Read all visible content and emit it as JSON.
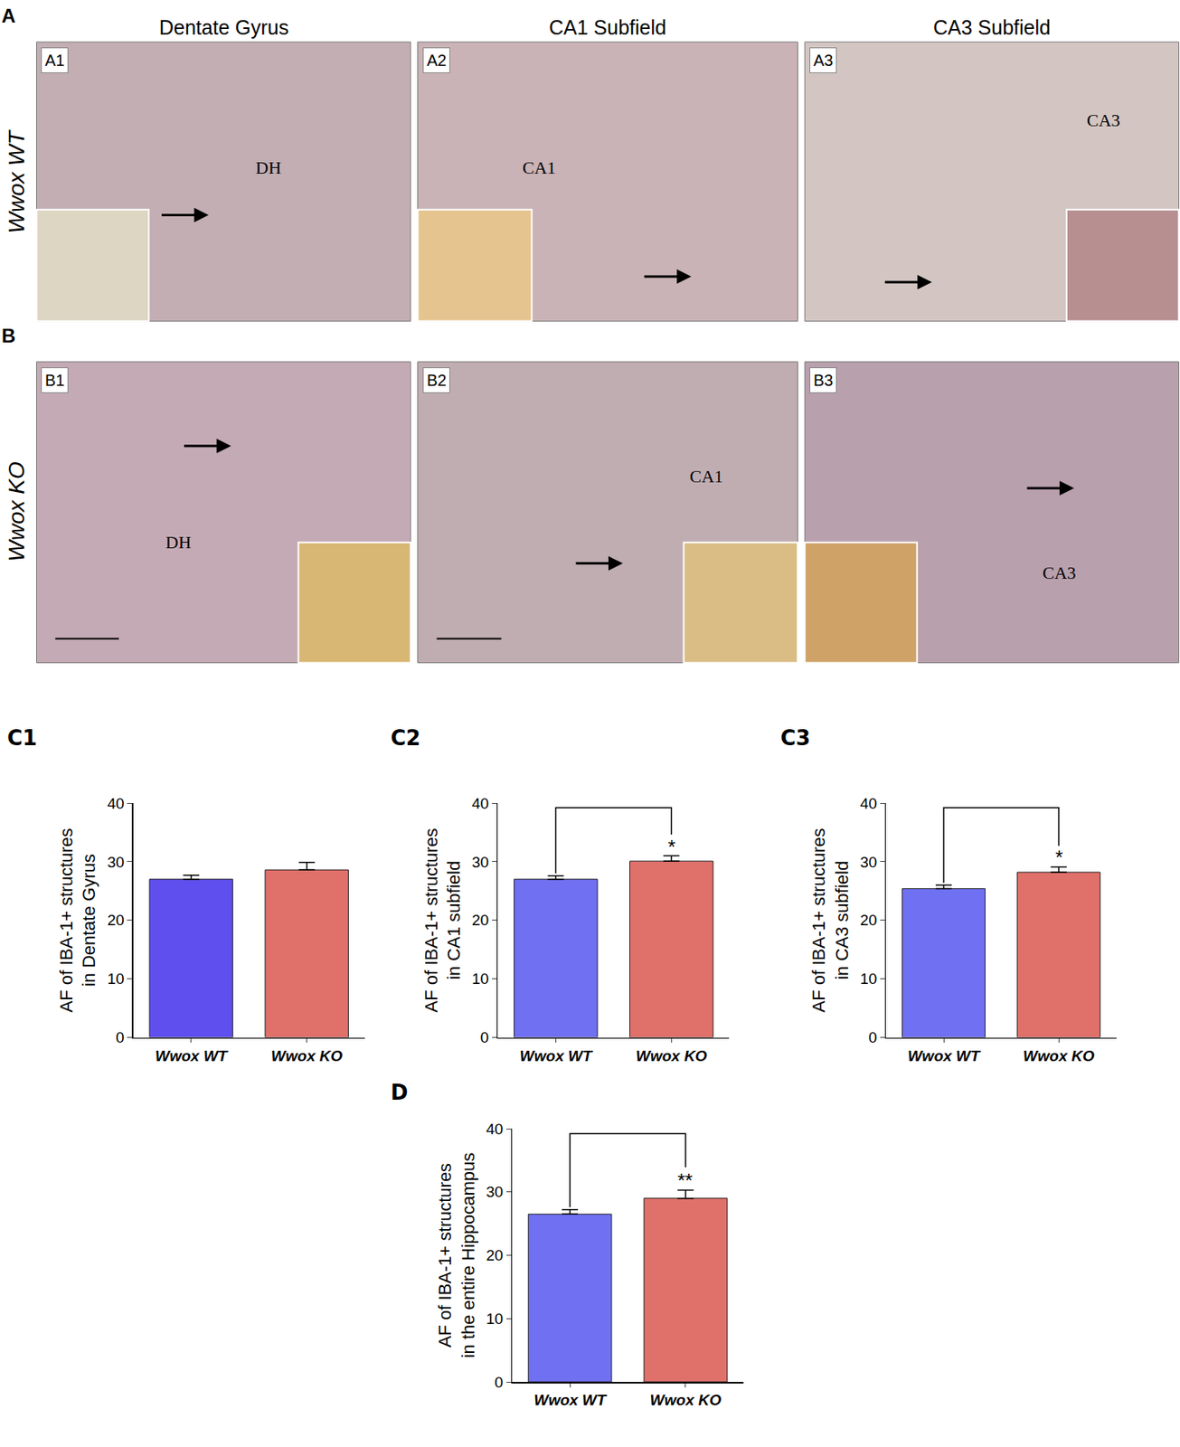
{
  "image_panels": {
    "columns": [
      "Dentate Gyrus",
      "CA1 Subfield",
      "CA3 Subfield"
    ],
    "rows": [
      {
        "label": "A",
        "name": "Wwox WT",
        "panels": [
          {
            "id": "A1",
            "region": "DH"
          },
          {
            "id": "A2",
            "region": "CA1"
          },
          {
            "id": "A3",
            "region": "CA3"
          }
        ]
      },
      {
        "label": "B",
        "name": "Wwox KO",
        "panels": [
          {
            "id": "B1",
            "region": "DH"
          },
          {
            "id": "B2",
            "region": "CA1"
          },
          {
            "id": "B3",
            "region": "CA3"
          }
        ]
      }
    ]
  },
  "chart_data": [
    {
      "type": "bar",
      "panel": "C1",
      "y_label": "AF of IBA-1+ structures\nin Dentate Gyrus",
      "categories": [
        "Wwox WT",
        "Wwox KO"
      ],
      "values": [
        27.0,
        28.6
      ],
      "errors": [
        0.7,
        1.3
      ],
      "colors": [
        "#5f4fee",
        "#e0706a"
      ],
      "ylim": [
        0,
        40
      ],
      "yticks": [
        0,
        10,
        20,
        30,
        40
      ],
      "grid": false
    },
    {
      "type": "bar",
      "panel": "C2",
      "y_label": "AF of IBA-1+ structures\nin CA1 subfield",
      "categories": [
        "Wwox WT",
        "Wwox KO"
      ],
      "values": [
        27.0,
        30.1
      ],
      "errors": [
        0.6,
        0.9
      ],
      "colors": [
        "#7070f2",
        "#e0706a"
      ],
      "ylim": [
        0,
        40
      ],
      "yticks": [
        0,
        10,
        20,
        30,
        40
      ],
      "grid": false,
      "significance": "*"
    },
    {
      "type": "bar",
      "panel": "C3",
      "y_label": "AF of IBA-1+ structures\nin CA3 subfield",
      "categories": [
        "Wwox WT",
        "Wwox KO"
      ],
      "values": [
        25.4,
        28.2
      ],
      "errors": [
        0.6,
        0.9
      ],
      "colors": [
        "#7070f2",
        "#e0706a"
      ],
      "ylim": [
        0,
        40
      ],
      "yticks": [
        0,
        10,
        20,
        30,
        40
      ],
      "grid": false,
      "significance": "*"
    },
    {
      "type": "bar",
      "panel": "D",
      "y_label": "AF of IBA-1+ structures\nin the entire Hippocampus",
      "categories": [
        "Wwox WT",
        "Wwox KO"
      ],
      "values": [
        26.5,
        29.0
      ],
      "errors": [
        0.7,
        1.3
      ],
      "colors": [
        "#7070f2",
        "#e0706a"
      ],
      "ylim": [
        0,
        40
      ],
      "yticks": [
        0,
        10,
        20,
        30,
        40
      ],
      "grid": false,
      "significance": "**"
    }
  ]
}
